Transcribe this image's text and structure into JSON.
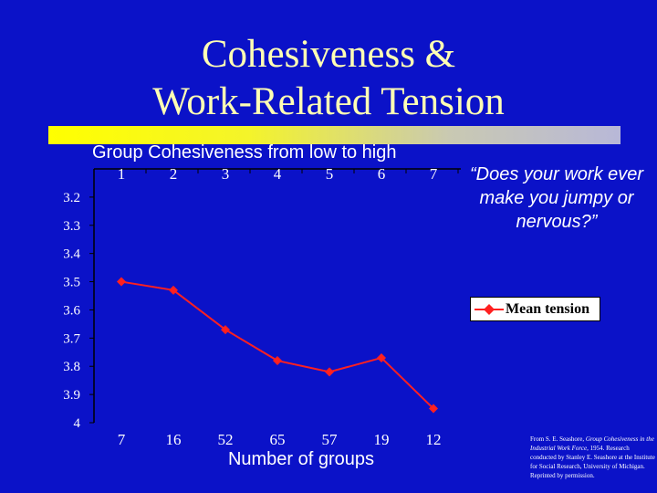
{
  "slide": {
    "title_line1": "Cohesiveness &",
    "title_line2": "Work-Related Tension",
    "question": "“Does your work ever make you jumpy or nervous?”",
    "credit_prefix": "From S. E. Seashore, ",
    "credit_title": "Group Cohesiveness in the Industrial Work Force",
    "credit_suffix": ", 1954. Research conducted by Stanley E. Seashore at the Institute for Social Research, University of Michigan. Reprinted by permission."
  },
  "colors": {
    "background": "#0b12c8",
    "title": "#ffffb4",
    "line": "#ff2020",
    "text": "#ffffff"
  },
  "chart_data": {
    "type": "line",
    "top_axis_title": "Group Cohesiveness from low to high",
    "bottom_axis_title": "Number of  groups",
    "categories": [
      "1",
      "2",
      "3",
      "4",
      "5",
      "6",
      "7"
    ],
    "group_counts": [
      "7",
      "16",
      "52",
      "65",
      "57",
      "19",
      "12"
    ],
    "series": [
      {
        "name": "Mean tension",
        "values": [
          3.5,
          3.53,
          3.67,
          3.78,
          3.82,
          3.77,
          3.95
        ]
      }
    ],
    "ylim": [
      3.1,
      4.0
    ],
    "y_inverted": true,
    "y_ticks": [
      "3.2",
      "3.3",
      "3.4",
      "3.5",
      "3.6",
      "3.7",
      "3.8",
      "3.9",
      "4"
    ],
    "grid": false,
    "legend_position": "right"
  }
}
